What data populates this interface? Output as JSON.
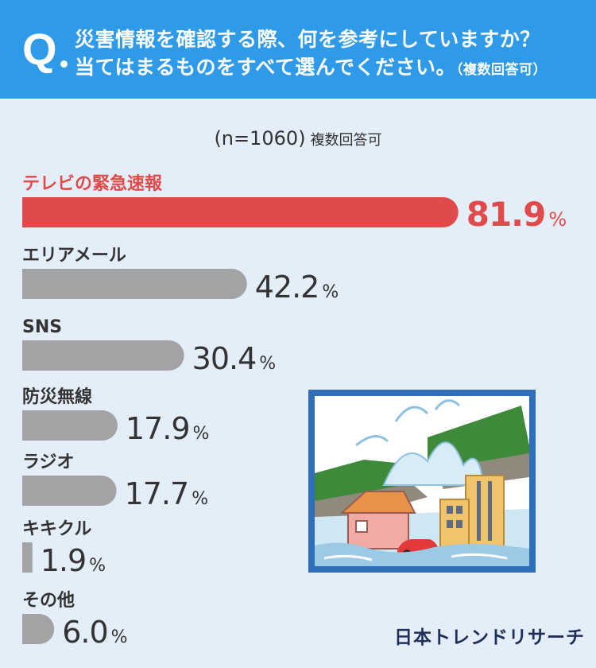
{
  "header": {
    "q_mark": "Q",
    "question_line1": "災害情報を確認する際、何を参考にしていますか？",
    "question_line2": "当てはまるものをすべて選んでください。",
    "question_note": "（複数回答可）"
  },
  "sample": {
    "n_label": "(n=1060)",
    "note": "複数回答可"
  },
  "brand": "日本トレンドリサーチ",
  "colors": {
    "highlight": "#e14a4a",
    "bar": "#a3a3a6",
    "header": "#2f9be8",
    "background": "#e4eef8"
  },
  "chart_data": {
    "type": "bar",
    "orientation": "horizontal",
    "unit": "%",
    "categories": [
      "テレビの緊急速報",
      "エリアメール",
      "SNS",
      "防災無線",
      "ラジオ",
      "キキクル",
      "その他"
    ],
    "values": [
      81.9,
      42.2,
      30.4,
      17.9,
      17.7,
      1.9,
      6.0
    ],
    "value_labels": [
      "81.9",
      "42.2",
      "30.4",
      "17.9",
      "17.7",
      "1.9",
      "6.0"
    ],
    "highlight_index": 0
  }
}
